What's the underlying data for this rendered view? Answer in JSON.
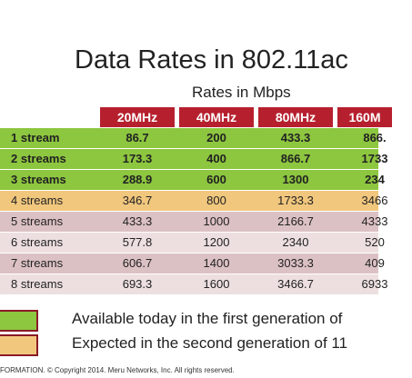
{
  "slide": {
    "title": "Data Rates in 802.11ac",
    "subtitle": "Rates in Mbps",
    "headers": [
      "20MHz",
      "40MHz",
      "80MHz",
      "160M"
    ],
    "rows": [
      {
        "label": "1 stream",
        "values": [
          "86.7",
          "200",
          "433.3",
          "866."
        ]
      },
      {
        "label": "2 streams",
        "values": [
          "173.3",
          "400",
          "866.7",
          "1733"
        ]
      },
      {
        "label": "3 streams",
        "values": [
          "288.9",
          "600",
          "1300",
          "234"
        ]
      },
      {
        "label": "4 streams",
        "values": [
          "346.7",
          "800",
          "1733.3",
          "3466"
        ]
      },
      {
        "label": "5 streams",
        "values": [
          "433.3",
          "1000",
          "2166.7",
          "4333"
        ]
      },
      {
        "label": "6 streams",
        "values": [
          "577.8",
          "1200",
          "2340",
          "520"
        ]
      },
      {
        "label": "7 streams",
        "values": [
          "606.7",
          "1400",
          "3033.3",
          "409"
        ]
      },
      {
        "label": "8 streams",
        "values": [
          "693.3",
          "1600",
          "3466.7",
          "6933"
        ]
      }
    ],
    "legend": [
      {
        "text": "Available today in the first generation of",
        "color": "#8dc63f"
      },
      {
        "text": "Expected in the second generation of 11",
        "color": "#f1c77e"
      }
    ],
    "footer": "FORMATION. © Copyright 2014. Meru Networks, Inc. All rights reserved.",
    "colors": {
      "header": "#b6202e",
      "gen1": "#8dc63f",
      "gen2": "#f1c77e",
      "rowA": "#dcc1c4",
      "rowB": "#eddfe0"
    }
  }
}
